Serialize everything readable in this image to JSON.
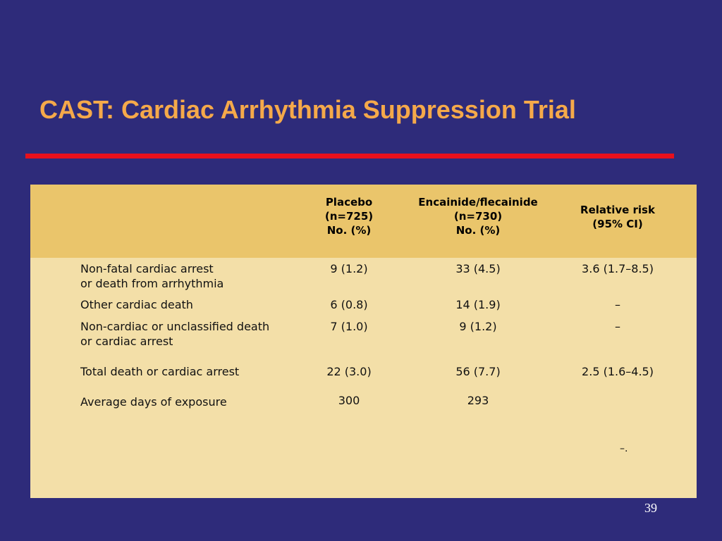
{
  "slide": {
    "title": "CAST: Cardiac Arrhythmia Suppression Trial",
    "page_number": "39"
  },
  "colors": {
    "background": "#2e2b7a",
    "title": "#f5a94a",
    "rule": "#e8101c",
    "header_fill": "#eac56b",
    "body_fill": "#f3dfa8"
  },
  "table": {
    "headers": [
      {
        "lines": [
          "Placebo",
          "(n=725)",
          "No. (%)"
        ]
      },
      {
        "lines": [
          "Encainide/flecainide",
          "(n=730)",
          "No. (%)"
        ]
      },
      {
        "lines": [
          "Relative risk",
          "(95% CI)"
        ]
      }
    ],
    "rows": [
      {
        "label": [
          "Non-fatal cardiac arrest",
          "or death from arrhythmia"
        ],
        "placebo": "9 (1.2)",
        "drug": "33 (4.5)",
        "rr": "3.6 (1.7–8.5)"
      },
      {
        "label": [
          "Other cardiac death"
        ],
        "placebo": "6 (0.8)",
        "drug": "14 (1.9)",
        "rr": "–"
      },
      {
        "label": [
          "Non-cardiac or unclassified death",
          "or cardiac arrest"
        ],
        "placebo": "7 (1.0)",
        "drug": "9 (1.2)",
        "rr": "–"
      },
      {
        "label": [
          "Total death or cardiac arrest"
        ],
        "placebo": "22 (3.0)",
        "drug": "56 (7.7)",
        "rr": "2.5 (1.6–4.5)"
      },
      {
        "label": [
          "Average days of exposure"
        ],
        "placebo": "300",
        "drug": "293",
        "rr": ""
      }
    ],
    "footnote": "–."
  }
}
